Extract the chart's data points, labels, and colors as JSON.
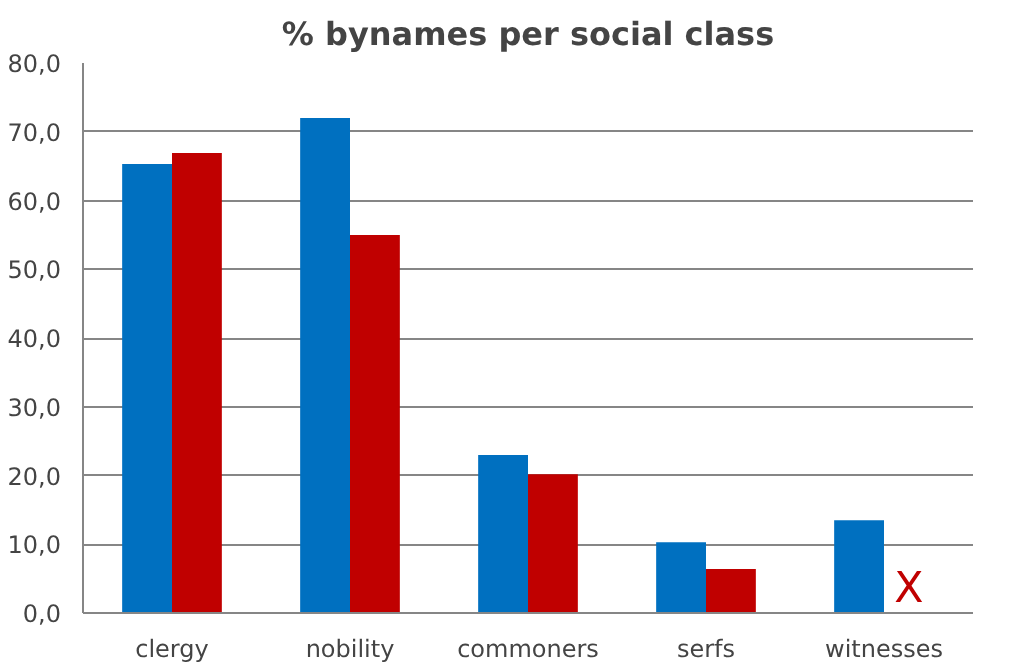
{
  "chart_data": {
    "type": "bar",
    "title": "% bynames per social class",
    "categories": [
      "clergy",
      "nobility",
      "commoners",
      "serfs",
      "witnesses"
    ],
    "series": [
      {
        "color": "#0070c0",
        "values": [
          65.3,
          72.0,
          23.0,
          10.3,
          13.5
        ]
      },
      {
        "color": "#c00000",
        "values": [
          66.9,
          55.0,
          20.2,
          6.4,
          null
        ]
      }
    ],
    "ylim": [
      0,
      80
    ],
    "yticks": [
      {
        "value": 0,
        "label": "0,0"
      },
      {
        "value": 10,
        "label": "10,0"
      },
      {
        "value": 20,
        "label": "20,0"
      },
      {
        "value": 30,
        "label": "30,0"
      },
      {
        "value": 40,
        "label": "40,0"
      },
      {
        "value": 50,
        "label": "50,0"
      },
      {
        "value": 60,
        "label": "60,0"
      },
      {
        "value": 70,
        "label": "70,0"
      },
      {
        "value": 80,
        "label": "80,0"
      }
    ],
    "grid": "y",
    "annotations": [
      {
        "text": "X",
        "x": "witnesses",
        "y": 3.5
      }
    ]
  }
}
